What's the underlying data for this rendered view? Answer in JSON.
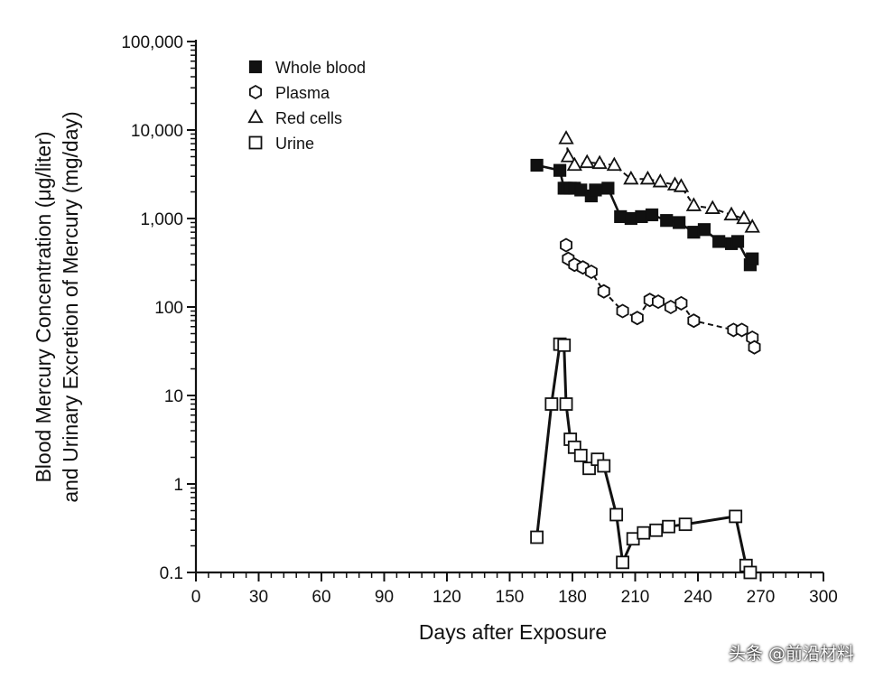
{
  "chart_data": {
    "type": "line",
    "title": "",
    "xlabel": "Days after Exposure",
    "ylabel_line1": "Blood Mercury Concentration (μg/liter)",
    "ylabel_line2": "and Urinary Excretion of Mercury (mg/day)",
    "yscale": "log",
    "xlim": [
      0,
      300
    ],
    "ylim": [
      0.1,
      100000
    ],
    "xticks": [
      0,
      30,
      60,
      90,
      120,
      150,
      180,
      210,
      240,
      270,
      300
    ],
    "xtick_labels": [
      "0",
      "30",
      "60",
      "90",
      "120",
      "150",
      "180",
      "210",
      "240",
      "270",
      "300"
    ],
    "yticks": [
      0.1,
      1,
      10,
      100,
      1000,
      10000,
      100000
    ],
    "ytick_labels": [
      "0.1",
      "1",
      "10",
      "100",
      "1,000",
      "10,000",
      "100,000"
    ],
    "legend_position": "top-left",
    "series": [
      {
        "name": "Whole blood",
        "marker": "filled-square",
        "x": [
          163,
          174,
          176,
          177,
          179,
          181,
          184,
          189,
          191,
          197,
          203,
          208,
          213,
          218,
          225,
          231,
          238,
          243,
          250,
          256,
          259,
          265,
          266
        ],
        "y": [
          4000,
          3500,
          2200,
          2200,
          2200,
          2200,
          2100,
          1800,
          2100,
          2200,
          1050,
          1000,
          1050,
          1100,
          950,
          900,
          700,
          750,
          550,
          520,
          550,
          300,
          350
        ]
      },
      {
        "name": "Plasma",
        "marker": "open-hexagon",
        "x": [
          177,
          178,
          181,
          185,
          189,
          195,
          204,
          211,
          217,
          221,
          227,
          232,
          238,
          257,
          261,
          266,
          267
        ],
        "y": [
          500,
          350,
          300,
          280,
          250,
          150,
          90,
          75,
          120,
          115,
          100,
          110,
          70,
          55,
          55,
          45,
          35
        ]
      },
      {
        "name": "Red cells",
        "marker": "open-triangle",
        "x": [
          177,
          178,
          181,
          187,
          193,
          200,
          208,
          216,
          222,
          229,
          232,
          238,
          247,
          256,
          262,
          266
        ],
        "y": [
          8000,
          5000,
          4000,
          4300,
          4200,
          4000,
          2800,
          2800,
          2600,
          2400,
          2300,
          1400,
          1300,
          1100,
          1000,
          800
        ]
      },
      {
        "name": "Urine",
        "marker": "open-square",
        "x": [
          163,
          170,
          174,
          176,
          177,
          179,
          181,
          184,
          188,
          192,
          195,
          201,
          204,
          209,
          214,
          220,
          226,
          234,
          258,
          263,
          265
        ],
        "y": [
          0.25,
          8,
          38,
          37,
          8,
          3.2,
          2.6,
          2.1,
          1.5,
          1.9,
          1.6,
          0.45,
          0.13,
          0.24,
          0.28,
          0.3,
          0.33,
          0.35,
          0.43,
          0.12,
          0.1
        ]
      }
    ]
  },
  "watermark": "头条 @前沿材料"
}
